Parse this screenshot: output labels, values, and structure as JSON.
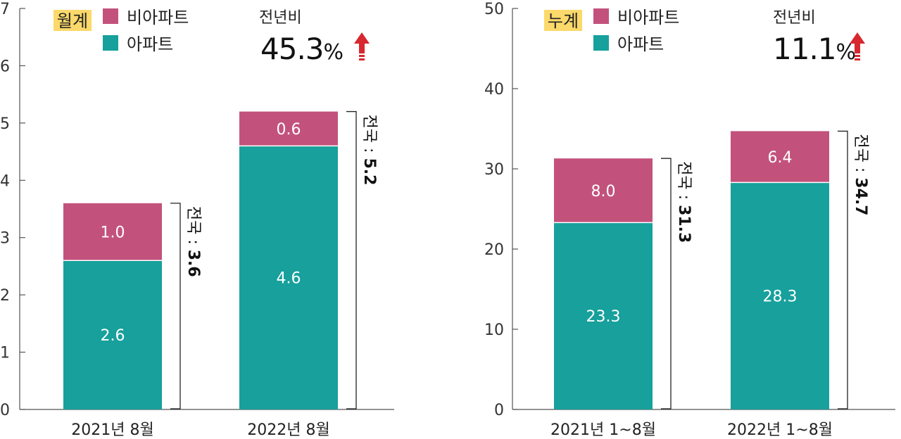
{
  "colors": {
    "apartment": "#17a09c",
    "non_apartment": "#c2527c",
    "highlight": "#fbd96a",
    "arrow": "#d7282f",
    "axis": "#555555"
  },
  "chart_data": [
    {
      "type": "bar",
      "stacked": true,
      "tag": "월계",
      "categories": [
        "2021년 8월",
        "2022년 8월"
      ],
      "series": [
        {
          "name": "아파트",
          "values": [
            2.6,
            4.6
          ]
        },
        {
          "name": "비아파트",
          "values": [
            1.0,
            0.6
          ]
        }
      ],
      "value_labels": {
        "apartment": [
          "2.6",
          "4.6"
        ],
        "non_apartment": [
          "1.0",
          "0.6"
        ]
      },
      "totals": [
        {
          "prefix": "전국 : ",
          "value": "3.6"
        },
        {
          "prefix": "전국 : ",
          "value": "5.2"
        }
      ],
      "ylim": [
        0,
        7
      ],
      "yticks": [
        "0",
        "1",
        "2",
        "3",
        "4",
        "5",
        "6",
        "7"
      ],
      "yoy": {
        "label": "전년비",
        "value": "45.3",
        "unit": "%"
      },
      "legend": [
        "비아파트",
        "아파트"
      ],
      "legend_position": "top-left",
      "grid": false
    },
    {
      "type": "bar",
      "stacked": true,
      "tag": "누계",
      "categories": [
        "2021년 1~8월",
        "2022년 1~8월"
      ],
      "series": [
        {
          "name": "아파트",
          "values": [
            23.3,
            28.3
          ]
        },
        {
          "name": "비아파트",
          "values": [
            8.0,
            6.4
          ]
        }
      ],
      "value_labels": {
        "apartment": [
          "23.3",
          "28.3"
        ],
        "non_apartment": [
          "8.0",
          "6.4"
        ]
      },
      "totals": [
        {
          "prefix": "전국 : ",
          "value": "31.3"
        },
        {
          "prefix": "전국 : ",
          "value": "34.7"
        }
      ],
      "ylim": [
        0,
        50
      ],
      "yticks": [
        "0",
        "10",
        "20",
        "30",
        "40",
        "50"
      ],
      "yoy": {
        "label": "전년비",
        "value": "11.1",
        "unit": "%"
      },
      "legend": [
        "비아파트",
        "아파트"
      ],
      "legend_position": "top-left",
      "grid": false
    }
  ]
}
